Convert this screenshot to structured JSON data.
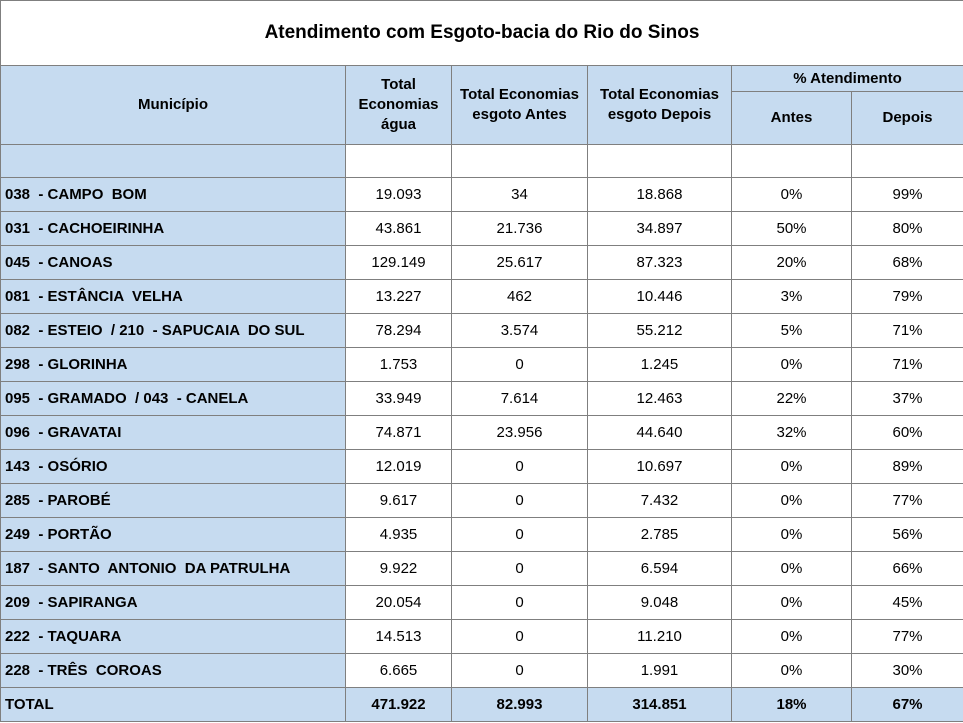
{
  "title": "Atendimento com Esgoto-bacia do Rio do Sinos",
  "header": {
    "municipio": "Município",
    "agua": "Total Economias água",
    "antes": "Total Economias esgoto Antes",
    "depois": "Total Economias esgoto Depois",
    "atendimento": "% Atendimento",
    "pct_antes": "Antes",
    "pct_depois": "Depois"
  },
  "rows": [
    [
      "038  - CAMPO  BOM",
      "19.093",
      "34",
      "18.868",
      "0%",
      "99%"
    ],
    [
      "031  - CACHOEIRINHA",
      "43.861",
      "21.736",
      "34.897",
      "50%",
      "80%"
    ],
    [
      "045  - CANOAS",
      "129.149",
      "25.617",
      "87.323",
      "20%",
      "68%"
    ],
    [
      "081  - ESTÂNCIA  VELHA",
      "13.227",
      "462",
      "10.446",
      "3%",
      "79%"
    ],
    [
      "082  - ESTEIO  / 210  - SAPUCAIA  DO SUL",
      "78.294",
      "3.574",
      "55.212",
      "5%",
      "71%"
    ],
    [
      "298  - GLORINHA",
      "1.753",
      "0",
      "1.245",
      "0%",
      "71%"
    ],
    [
      "095  - GRAMADO  / 043  - CANELA",
      "33.949",
      "7.614",
      "12.463",
      "22%",
      "37%"
    ],
    [
      "096  - GRAVATAI",
      "74.871",
      "23.956",
      "44.640",
      "32%",
      "60%"
    ],
    [
      "143  - OSÓRIO",
      "12.019",
      "0",
      "10.697",
      "0%",
      "89%"
    ],
    [
      "285  - PAROBÉ",
      "9.617",
      "0",
      "7.432",
      "0%",
      "77%"
    ],
    [
      "249  - PORTÃO",
      "4.935",
      "0",
      "2.785",
      "0%",
      "56%"
    ],
    [
      "187  - SANTO  ANTONIO  DA PATRULHA",
      "9.922",
      "0",
      "6.594",
      "0%",
      "66%"
    ],
    [
      "209  - SAPIRANGA",
      "20.054",
      "0",
      "9.048",
      "0%",
      "45%"
    ],
    [
      "222  - TAQUARA",
      "14.513",
      "0",
      "11.210",
      "0%",
      "77%"
    ],
    [
      "228  - TRÊS  COROAS",
      "6.665",
      "0",
      "1.991",
      "0%",
      "30%"
    ]
  ],
  "total": [
    "TOTAL",
    "471.922",
    "82.993",
    "314.851",
    "18%",
    "67%"
  ]
}
